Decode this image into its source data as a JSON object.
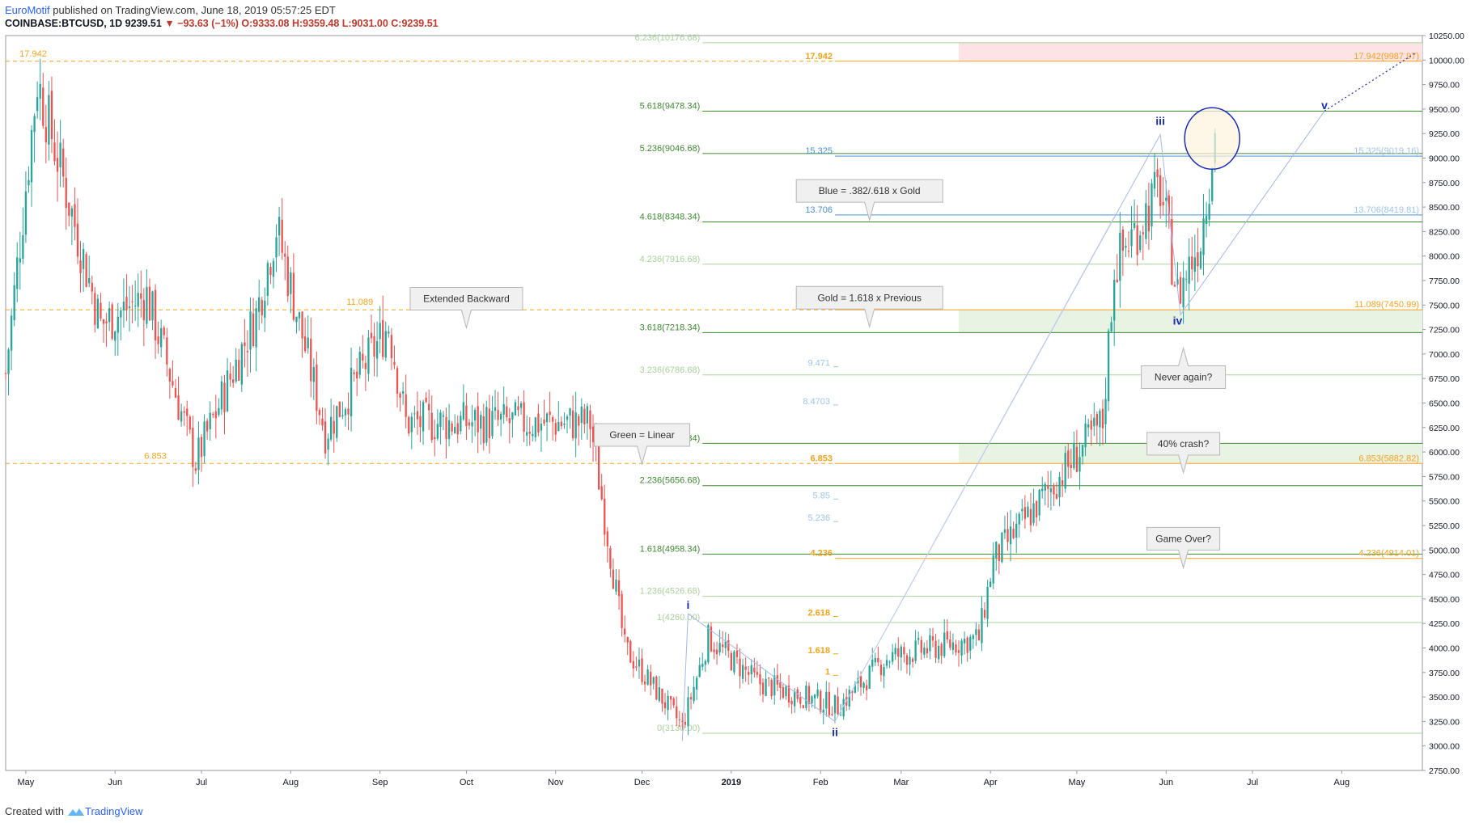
{
  "header": {
    "author": "EuroMotif",
    "published": "published on TradingView.com, June 18, 2019 05:57:25 EDT",
    "symbol": "COINBASE:BTCUSD, 1D",
    "last": "9239.51",
    "change": "−93.63 (−1%)",
    "ohlc": "O:9333.08 H:9359.48 L:9031.00 C:9239.51"
  },
  "footer": {
    "created_with": "Created with",
    "brand": "TradingView"
  },
  "colors": {
    "green": "#3d8b2f",
    "light_green": "#a9d19b",
    "orange": "#f7a21b",
    "blue": "#4a90d9",
    "light_blue": "#9fc5ec",
    "navy": "#1a2dbf",
    "up": "#26a69a",
    "down": "#ef5350"
  },
  "chart_data": {
    "type": "candlestick",
    "ylim": [
      2750,
      10250
    ],
    "y_ticks": [
      "2750.00",
      "3000.00",
      "3250.00",
      "3500.00",
      "3750.00",
      "4000.00",
      "4250.00",
      "4500.00",
      "4750.00",
      "5000.00",
      "5250.00",
      "5500.00",
      "5750.00",
      "6000.00",
      "6250.00",
      "6500.00",
      "6750.00",
      "7000.00",
      "7250.00",
      "7500.00",
      "7750.00",
      "8000.00",
      "8250.00",
      "8500.00",
      "8750.00",
      "9000.00",
      "9250.00",
      "9500.00",
      "9750.00",
      "10000.00",
      "10250.00"
    ],
    "x_ticks": [
      "May",
      "Jun",
      "Jul",
      "Aug",
      "Sep",
      "Oct",
      "Nov",
      "Dec",
      "2019",
      "Feb",
      "Mar",
      "Apr",
      "May",
      "Jun",
      "Jul",
      "Aug"
    ],
    "x_range": [
      "2018-04-24",
      "2019-08-29"
    ],
    "green_levels": [
      {
        "label": "6.236(10176.68)",
        "value": 10176.68,
        "faint": true
      },
      {
        "label": "5.618(9478.34)",
        "value": 9478.34
      },
      {
        "label": "5.236(9046.68)",
        "value": 9046.68
      },
      {
        "label": "4.618(8348.34)",
        "value": 8348.34
      },
      {
        "label": "4.236(7916.68)",
        "value": 7916.68,
        "faint": true
      },
      {
        "label": "3.618(7218.34)",
        "value": 7218.34
      },
      {
        "label": "3.236(6786.68)",
        "value": 6786.68,
        "faint": true
      },
      {
        "label": "2.618(6088.34)",
        "value": 6088.34
      },
      {
        "label": "2.236(5656.68)",
        "value": 5656.68
      },
      {
        "label": "1.618(4958.34)",
        "value": 4958.34
      },
      {
        "label": "1.236(4526.68)",
        "value": 4526.68,
        "faint": true
      },
      {
        "label": "1(4260.00)",
        "value": 4260.0,
        "faint": true
      },
      {
        "label": "0(3130.00)",
        "value": 3130.0,
        "faint": true
      }
    ],
    "orange_levels": [
      {
        "label": "17.942",
        "value": 9987.97,
        "right": "17.942(9987.97)",
        "dashed_left": true
      },
      {
        "label": "11.089",
        "value": 7450.99,
        "right": "11.089(7450.99)",
        "dashed_left": true
      },
      {
        "label": "6.853",
        "value": 5882.82,
        "right": "6.853(5882.82)",
        "dashed_left": true
      },
      {
        "label": "4.236",
        "value": 4914.01,
        "right": "4.236(4914.01)"
      }
    ],
    "orange_minor": [
      {
        "label": "2.618",
        "value": 4322
      },
      {
        "label": "1.618",
        "value": 3940
      },
      {
        "label": "1",
        "value": 3720
      }
    ],
    "blue_levels": [
      {
        "label": "15.325",
        "value": 9019.16,
        "right": "15.325(9019.16)"
      },
      {
        "label": "13.706",
        "value": 8419.81,
        "right": "13.706(8419.81)"
      }
    ],
    "blue_minor": [
      {
        "label": "9.471",
        "value": 6870
      },
      {
        "label": "8.4703",
        "value": 6480
      },
      {
        "label": "5.85",
        "value": 5520
      },
      {
        "label": "5.236",
        "value": 5290
      }
    ],
    "callouts": [
      {
        "text": "Extended Backward",
        "date": "2018-10-01",
        "value": 7680
      },
      {
        "text": "Blue = .382/.618 x Gold",
        "date": "2019-02-18",
        "value": 8780
      },
      {
        "text": "Gold = 1.618 x Previous",
        "date": "2019-02-18",
        "value": 7690
      },
      {
        "text": "Green = Linear",
        "date": "2018-12-01",
        "value": 6290
      },
      {
        "text": "Never again?",
        "date": "2019-06-07",
        "value": 6880
      },
      {
        "text": "40% crash?",
        "date": "2019-06-07",
        "value": 6200
      },
      {
        "text": "Game Over?",
        "date": "2019-06-07",
        "value": 5230
      }
    ],
    "wave_labels": [
      {
        "text": "i",
        "date": "2018-12-17",
        "value": 4400
      },
      {
        "text": "ii",
        "date": "2019-02-06",
        "value": 3100
      },
      {
        "text": "iii",
        "date": "2019-05-30",
        "value": 9340
      },
      {
        "text": "iv",
        "date": "2019-06-05",
        "value": 7300
      },
      {
        "text": "v",
        "date": "2019-07-26",
        "value": 9500
      }
    ]
  }
}
